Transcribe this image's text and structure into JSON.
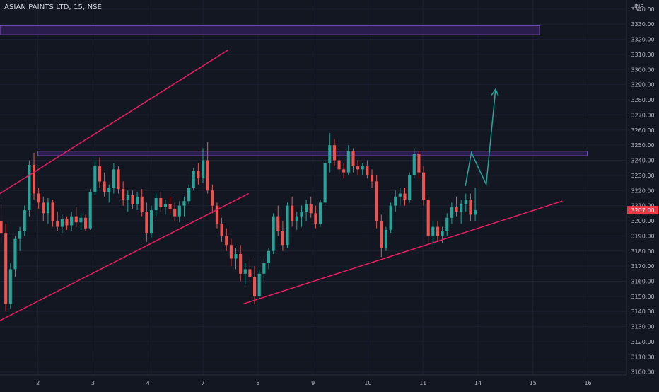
{
  "header": {
    "title": "ASIAN PAINTS LTD, 15, NSE"
  },
  "colors": {
    "background": "#131722",
    "up": "#26a69a",
    "down": "#ef5350",
    "trendline": "#e91e63",
    "zone_fill": "#2e1f55",
    "zone_border": "#7e57c2",
    "projection": "#26a69a",
    "axis_text": "#b2b5be",
    "price_tag": "#f23645"
  },
  "chart_data": {
    "type": "candlestick",
    "title": "ASIAN PAINTS LTD, 15, NSE",
    "currency": "INR",
    "y_ticks": [
      3100,
      3110,
      3120,
      3130,
      3140,
      3150,
      3160,
      3170,
      3180,
      3190,
      3200,
      3210,
      3220,
      3230,
      3240,
      3250,
      3260,
      3270,
      3280,
      3290,
      3300,
      3310,
      3320,
      3330,
      3340
    ],
    "y_tick_labels": [
      "3100.00",
      "3110.00",
      "3120.00",
      "3130.00",
      "3140.00",
      "3150.00",
      "3160.00",
      "3170.00",
      "3180.00",
      "3190.00",
      "3200.00",
      "3210.00",
      "3220.00",
      "3230.00",
      "3240.00",
      "3250.00",
      "3260.00",
      "3270.00",
      "3280.00",
      "3290.00",
      "3300.00",
      "3310.00",
      "3320.00",
      "3330.00",
      "3340.00"
    ],
    "ylim": [
      3098,
      3346
    ],
    "x_tick_labels": [
      "2",
      "3",
      "4",
      "7",
      "8",
      "9",
      "10",
      "11",
      "14",
      "15",
      "16"
    ],
    "x_tick_positions": [
      0.5,
      1.5,
      2.5,
      3.5,
      4.5,
      5.5,
      6.5,
      7.5,
      8.5,
      9.5,
      10.5
    ],
    "xlim": [
      -0.19,
      11.2
    ],
    "last_price": 3207,
    "last_price_label": "3207.00",
    "zones": [
      {
        "x_start": -0.19,
        "x_end": 9.62,
        "y_low": 3323,
        "y_high": 3329
      },
      {
        "x_start": 0.5,
        "x_end": 10.49,
        "y_low": 3243,
        "y_high": 3246
      }
    ],
    "trendlines": [
      {
        "from": [
          -0.19,
          3218
        ],
        "to": [
          3.96,
          3313
        ]
      },
      {
        "from": [
          -0.19,
          3134
        ],
        "to": [
          4.33,
          3218
        ]
      },
      {
        "from": [
          4.23,
          3145
        ],
        "to": [
          10.03,
          3213
        ]
      }
    ],
    "projection_path": [
      [
        8.27,
        3223
      ],
      [
        8.38,
        3245
      ],
      [
        8.65,
        3224
      ],
      [
        8.82,
        3287
      ]
    ],
    "candles_summary": "Approx. 15-minute OHLC candles reconstructed from the chart",
    "candles": [
      [
        3200,
        3212,
        3185,
        3192
      ],
      [
        3192,
        3198,
        3140,
        3145
      ],
      [
        3145,
        3172,
        3142,
        3168
      ],
      [
        3168,
        3190,
        3163,
        3188
      ],
      [
        3188,
        3196,
        3180,
        3193
      ],
      [
        3193,
        3210,
        3190,
        3207
      ],
      [
        3207,
        3240,
        3203,
        3237
      ],
      [
        3237,
        3245,
        3214,
        3218
      ],
      [
        3218,
        3222,
        3208,
        3212
      ],
      [
        3212,
        3216,
        3200,
        3205
      ],
      [
        3205,
        3215,
        3198,
        3212
      ],
      [
        3212,
        3214,
        3196,
        3200
      ],
      [
        3200,
        3206,
        3193,
        3196
      ],
      [
        3196,
        3204,
        3192,
        3201
      ],
      [
        3201,
        3203,
        3194,
        3197
      ],
      [
        3197,
        3206,
        3193,
        3203
      ],
      [
        3203,
        3209,
        3196,
        3199
      ],
      [
        3199,
        3205,
        3194,
        3202
      ],
      [
        3202,
        3204,
        3193,
        3195
      ],
      [
        3195,
        3221,
        3194,
        3219
      ],
      [
        3219,
        3240,
        3217,
        3236
      ],
      [
        3236,
        3242,
        3222,
        3226
      ],
      [
        3226,
        3232,
        3216,
        3219
      ],
      [
        3219,
        3224,
        3212,
        3222
      ],
      [
        3222,
        3238,
        3218,
        3234
      ],
      [
        3234,
        3236,
        3218,
        3221
      ],
      [
        3221,
        3226,
        3210,
        3214
      ],
      [
        3214,
        3220,
        3206,
        3217
      ],
      [
        3217,
        3220,
        3208,
        3211
      ],
      [
        3211,
        3219,
        3207,
        3216
      ],
      [
        3216,
        3221,
        3203,
        3206
      ],
      [
        3206,
        3212,
        3186,
        3192
      ],
      [
        3192,
        3210,
        3189,
        3207
      ],
      [
        3207,
        3218,
        3203,
        3215
      ],
      [
        3215,
        3219,
        3206,
        3209
      ],
      [
        3209,
        3214,
        3204,
        3211
      ],
      [
        3211,
        3216,
        3205,
        3208
      ],
      [
        3208,
        3212,
        3200,
        3203
      ],
      [
        3203,
        3213,
        3199,
        3210
      ],
      [
        3210,
        3216,
        3203,
        3213
      ],
      [
        3213,
        3224,
        3211,
        3222
      ],
      [
        3222,
        3235,
        3220,
        3233
      ],
      [
        3233,
        3238,
        3224,
        3228
      ],
      [
        3228,
        3248,
        3225,
        3240
      ],
      [
        3240,
        3252,
        3218,
        3220
      ],
      [
        3220,
        3224,
        3205,
        3210
      ],
      [
        3210,
        3212,
        3195,
        3198
      ],
      [
        3198,
        3202,
        3186,
        3190
      ],
      [
        3190,
        3195,
        3180,
        3184
      ],
      [
        3184,
        3188,
        3170,
        3175
      ],
      [
        3175,
        3182,
        3168,
        3178
      ],
      [
        3178,
        3184,
        3160,
        3165
      ],
      [
        3165,
        3172,
        3158,
        3168
      ],
      [
        3168,
        3176,
        3160,
        3163
      ],
      [
        3163,
        3170,
        3145,
        3150
      ],
      [
        3150,
        3168,
        3148,
        3165
      ],
      [
        3165,
        3175,
        3160,
        3172
      ],
      [
        3172,
        3182,
        3168,
        3180
      ],
      [
        3180,
        3205,
        3178,
        3203
      ],
      [
        3203,
        3210,
        3190,
        3193
      ],
      [
        3193,
        3200,
        3180,
        3184
      ],
      [
        3184,
        3212,
        3182,
        3210
      ],
      [
        3210,
        3216,
        3196,
        3200
      ],
      [
        3200,
        3206,
        3194,
        3203
      ],
      [
        3203,
        3210,
        3196,
        3206
      ],
      [
        3206,
        3214,
        3200,
        3211
      ],
      [
        3211,
        3216,
        3202,
        3205
      ],
      [
        3205,
        3210,
        3195,
        3198
      ],
      [
        3198,
        3214,
        3196,
        3212
      ],
      [
        3212,
        3240,
        3210,
        3238
      ],
      [
        3238,
        3258,
        3232,
        3250
      ],
      [
        3250,
        3254,
        3236,
        3240
      ],
      [
        3240,
        3246,
        3230,
        3234
      ],
      [
        3234,
        3238,
        3228,
        3232
      ],
      [
        3232,
        3250,
        3230,
        3246
      ],
      [
        3246,
        3248,
        3232,
        3236
      ],
      [
        3236,
        3240,
        3230,
        3234
      ],
      [
        3234,
        3238,
        3230,
        3236
      ],
      [
        3236,
        3240,
        3228,
        3230
      ],
      [
        3230,
        3234,
        3222,
        3226
      ],
      [
        3226,
        3230,
        3195,
        3200
      ],
      [
        3200,
        3204,
        3176,
        3182
      ],
      [
        3182,
        3196,
        3180,
        3194
      ],
      [
        3194,
        3212,
        3192,
        3210
      ],
      [
        3210,
        3220,
        3206,
        3216
      ],
      [
        3216,
        3222,
        3210,
        3218
      ],
      [
        3218,
        3222,
        3210,
        3214
      ],
      [
        3214,
        3232,
        3212,
        3230
      ],
      [
        3230,
        3248,
        3228,
        3244
      ],
      [
        3244,
        3246,
        3228,
        3232
      ],
      [
        3232,
        3236,
        3210,
        3214
      ],
      [
        3214,
        3216,
        3186,
        3190
      ],
      [
        3190,
        3200,
        3184,
        3196
      ],
      [
        3196,
        3200,
        3186,
        3190
      ],
      [
        3190,
        3196,
        3185,
        3193
      ],
      [
        3193,
        3205,
        3190,
        3202
      ],
      [
        3202,
        3212,
        3198,
        3209
      ],
      [
        3209,
        3216,
        3203,
        3206
      ],
      [
        3206,
        3214,
        3198,
        3211
      ],
      [
        3211,
        3218,
        3206,
        3214
      ],
      [
        3214,
        3218,
        3200,
        3204
      ],
      [
        3204,
        3222,
        3200,
        3207
      ]
    ]
  }
}
